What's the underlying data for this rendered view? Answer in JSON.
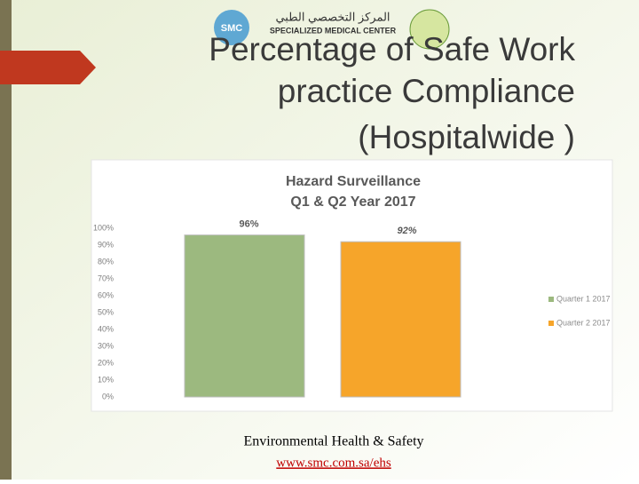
{
  "slide": {
    "title_lines": [
      "Percentage of Safe Work",
      "practice Compliance",
      "(Hospitalwide )"
    ],
    "logo": {
      "short": "SMC",
      "arabic": "المركز التخصصي الطبي",
      "name": "SPECIALIZED MEDICAL CENTER"
    },
    "footer": {
      "department": "Environmental Health & Safety",
      "link": "www.smc.com.sa/ehs"
    }
  },
  "chart_data": {
    "type": "bar",
    "title": "Hazard Surveillance",
    "subtitle": "Q1 & Q2 Year 2017",
    "categories": [
      null
    ],
    "series": [
      {
        "name": "Quarter 1 2017",
        "color": "#9cb97f",
        "values": [
          96
        ],
        "value_labels": [
          "96%"
        ]
      },
      {
        "name": "Quarter 2 2017",
        "color": "#f6a52a",
        "values": [
          92
        ],
        "value_labels": [
          "92%"
        ]
      }
    ],
    "ylim": [
      0,
      100
    ],
    "yticks": [
      {
        "value": 0,
        "label": "0%"
      },
      {
        "value": 10,
        "label": "10%"
      },
      {
        "value": 20,
        "label": "20%"
      },
      {
        "value": 30,
        "label": "30%"
      },
      {
        "value": 40,
        "label": "40%"
      },
      {
        "value": 50,
        "label": "50%"
      },
      {
        "value": 60,
        "label": "60%"
      },
      {
        "value": 70,
        "label": "70%"
      },
      {
        "value": 80,
        "label": "80%"
      },
      {
        "value": 90,
        "label": "90%"
      },
      {
        "value": 100,
        "label": "100%"
      }
    ],
    "grid": false,
    "legend": "right"
  }
}
